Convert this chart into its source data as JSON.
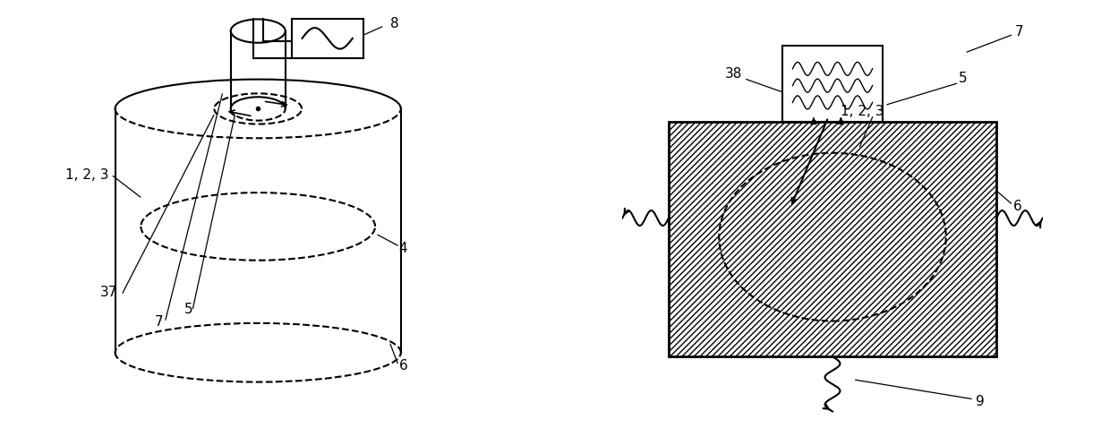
{
  "bg_color": "#ffffff",
  "line_color": "#000000",
  "fig_width": 12.4,
  "fig_height": 4.89
}
